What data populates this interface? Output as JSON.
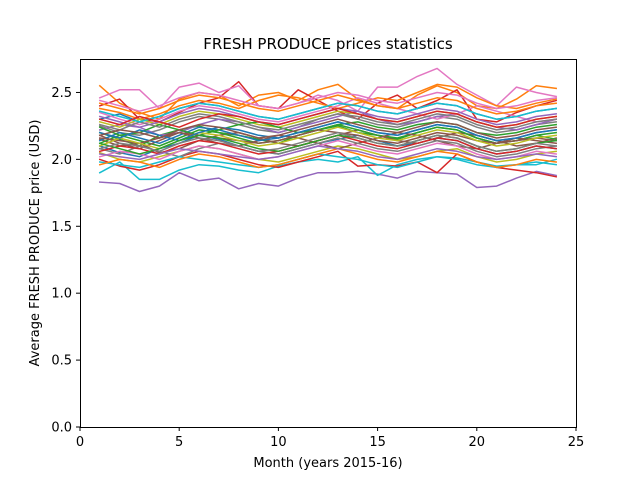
{
  "chart_data": {
    "type": "line",
    "title": "FRESH PRODUCE prices statistics",
    "xlabel": "Month (years 2015-16)",
    "ylabel": "Average FRESH PRODUCE price (USD)",
    "xlim": [
      0,
      25
    ],
    "ylim": [
      0,
      2.75
    ],
    "xticks": [
      0,
      5,
      10,
      15,
      20,
      25
    ],
    "yticks": [
      0.0,
      0.5,
      1.0,
      1.5,
      2.0,
      2.5
    ],
    "ytick_labels": [
      "0.0",
      "0.5",
      "1.0",
      "1.5",
      "2.0",
      "2.5"
    ],
    "grid": false,
    "legend": "none",
    "x": [
      1,
      2,
      3,
      4,
      5,
      6,
      7,
      8,
      9,
      10,
      11,
      12,
      13,
      14,
      15,
      16,
      17,
      18,
      19,
      20,
      21,
      22,
      23,
      24
    ],
    "palette": [
      "#1f77b4",
      "#ff7f0e",
      "#2ca02c",
      "#d62728",
      "#9467bd",
      "#8c564b",
      "#e377c2",
      "#7f7f7f",
      "#bcbd22",
      "#17becf"
    ],
    "series": [
      {
        "values": [
          2.1,
          2.05,
          2.02,
          2.08,
          2.12,
          2.18,
          2.15,
          2.1,
          2.06,
          2.04,
          2.08,
          2.12,
          2.15,
          2.18,
          2.14,
          2.1,
          2.12,
          2.16,
          2.14,
          2.08,
          2.04,
          2.06,
          2.1,
          2.08
        ]
      },
      {
        "values": [
          2.55,
          2.42,
          2.35,
          2.3,
          2.45,
          2.5,
          2.48,
          2.4,
          2.48,
          2.5,
          2.44,
          2.52,
          2.56,
          2.45,
          2.4,
          2.38,
          2.48,
          2.55,
          2.5,
          2.4,
          2.38,
          2.45,
          2.55,
          2.53
        ]
      },
      {
        "values": [
          2.2,
          2.15,
          2.1,
          2.18,
          2.22,
          2.25,
          2.2,
          2.18,
          2.15,
          2.12,
          2.18,
          2.22,
          2.25,
          2.2,
          2.18,
          2.15,
          2.2,
          2.24,
          2.22,
          2.16,
          2.12,
          2.14,
          2.18,
          2.2
        ]
      },
      {
        "values": [
          2.4,
          2.45,
          2.3,
          2.28,
          2.35,
          2.42,
          2.46,
          2.58,
          2.4,
          2.38,
          2.52,
          2.44,
          2.36,
          2.3,
          2.42,
          2.48,
          2.38,
          2.44,
          2.52,
          2.3,
          2.28,
          2.35,
          2.4,
          2.44
        ]
      },
      {
        "values": [
          1.83,
          1.82,
          1.76,
          1.8,
          1.9,
          1.84,
          1.86,
          1.78,
          1.82,
          1.8,
          1.86,
          1.9,
          1.9,
          1.91,
          1.89,
          1.86,
          1.91,
          1.9,
          1.89,
          1.79,
          1.8,
          1.86,
          1.91,
          1.88
        ]
      },
      {
        "values": [
          2.15,
          2.1,
          2.12,
          2.05,
          2.08,
          2.14,
          2.18,
          2.2,
          2.16,
          2.12,
          2.1,
          2.14,
          2.18,
          2.22,
          2.18,
          2.14,
          2.12,
          2.16,
          2.2,
          2.18,
          2.14,
          2.1,
          2.12,
          2.16
        ]
      },
      {
        "values": [
          2.46,
          2.52,
          2.52,
          2.38,
          2.54,
          2.57,
          2.5,
          2.55,
          2.4,
          2.38,
          2.42,
          2.48,
          2.44,
          2.36,
          2.54,
          2.54,
          2.62,
          2.68,
          2.56,
          2.48,
          2.4,
          2.54,
          2.5,
          2.47
        ]
      },
      {
        "values": [
          2.25,
          2.2,
          2.18,
          2.22,
          2.28,
          2.32,
          2.3,
          2.26,
          2.22,
          2.2,
          2.24,
          2.3,
          2.34,
          2.3,
          2.26,
          2.24,
          2.28,
          2.32,
          2.3,
          2.24,
          2.2,
          2.22,
          2.26,
          2.28
        ]
      },
      {
        "values": [
          2.05,
          2.0,
          1.98,
          2.02,
          2.06,
          2.1,
          2.08,
          2.04,
          2.0,
          1.98,
          2.02,
          2.06,
          2.1,
          2.08,
          2.04,
          2.0,
          2.02,
          2.06,
          2.08,
          2.02,
          1.98,
          2.0,
          2.04,
          2.06
        ]
      },
      {
        "values": [
          1.9,
          1.98,
          1.85,
          1.85,
          1.92,
          1.96,
          1.95,
          1.92,
          1.9,
          1.95,
          1.98,
          2.0,
          1.98,
          2.02,
          1.88,
          1.96,
          2.0,
          2.02,
          2.01,
          1.98,
          1.95,
          1.96,
          1.96,
          2.0
        ]
      },
      {
        "values": [
          2.3,
          2.34,
          2.28,
          2.32,
          2.38,
          2.42,
          2.4,
          2.36,
          2.32,
          2.3,
          2.34,
          2.38,
          2.42,
          2.4,
          2.36,
          2.34,
          2.38,
          2.42,
          2.4,
          2.34,
          2.3,
          2.32,
          2.36,
          2.38
        ]
      },
      {
        "values": [
          2.38,
          2.35,
          2.3,
          2.34,
          2.4,
          2.44,
          2.42,
          2.38,
          2.44,
          2.48,
          2.46,
          2.42,
          2.38,
          2.42,
          2.46,
          2.44,
          2.5,
          2.56,
          2.54,
          2.46,
          2.4,
          2.38,
          2.42,
          2.45
        ]
      },
      {
        "values": [
          2.12,
          2.18,
          2.14,
          2.1,
          2.16,
          2.22,
          2.2,
          2.16,
          2.12,
          2.14,
          2.18,
          2.22,
          2.26,
          2.22,
          2.18,
          2.16,
          2.2,
          2.24,
          2.22,
          2.16,
          2.12,
          2.14,
          2.18,
          2.15
        ]
      },
      {
        "values": [
          2.0,
          1.95,
          1.92,
          1.96,
          2.02,
          2.06,
          2.04,
          2.0,
          1.96,
          1.94,
          1.98,
          2.02,
          2.06,
          1.95,
          1.96,
          1.95,
          1.98,
          1.9,
          2.04,
          1.98,
          1.94,
          1.92,
          1.9,
          1.87
        ]
      },
      {
        "values": [
          2.22,
          2.26,
          2.24,
          2.18,
          2.2,
          2.26,
          2.3,
          2.28,
          2.24,
          2.2,
          2.24,
          2.28,
          2.32,
          2.36,
          2.3,
          2.26,
          2.28,
          2.32,
          2.34,
          2.28,
          2.24,
          2.22,
          2.26,
          2.3
        ]
      },
      {
        "values": [
          2.18,
          2.12,
          2.08,
          2.14,
          2.2,
          2.16,
          2.12,
          2.1,
          2.14,
          2.18,
          2.16,
          2.12,
          2.08,
          2.12,
          2.16,
          2.2,
          2.18,
          2.14,
          2.1,
          2.08,
          2.12,
          2.16,
          2.14,
          2.12
        ]
      },
      {
        "values": [
          2.35,
          2.3,
          2.26,
          2.3,
          2.36,
          2.4,
          2.38,
          2.34,
          2.3,
          2.28,
          2.32,
          2.36,
          2.4,
          2.46,
          2.42,
          2.38,
          2.34,
          2.3,
          2.34,
          2.4,
          2.36,
          2.32,
          2.28,
          2.3
        ]
      },
      {
        "values": [
          2.08,
          2.04,
          2.1,
          2.06,
          2.02,
          2.08,
          2.12,
          2.1,
          2.06,
          2.04,
          2.08,
          2.12,
          2.16,
          2.12,
          2.08,
          2.06,
          2.1,
          2.14,
          2.12,
          2.06,
          2.02,
          2.04,
          2.08,
          2.1
        ]
      },
      {
        "values": [
          2.28,
          2.24,
          2.3,
          2.26,
          2.32,
          2.36,
          2.34,
          2.3,
          2.26,
          2.24,
          2.28,
          2.32,
          2.36,
          2.34,
          2.3,
          2.28,
          2.32,
          2.36,
          2.34,
          2.28,
          2.24,
          2.26,
          2.3,
          2.32
        ]
      },
      {
        "values": [
          1.98,
          1.96,
          1.94,
          1.98,
          2.02,
          2.0,
          1.98,
          1.96,
          1.94,
          1.96,
          2.0,
          2.04,
          2.02,
          2.0,
          1.96,
          1.94,
          1.98,
          2.02,
          2.0,
          1.96,
          1.94,
          1.96,
          1.98,
          1.96
        ]
      },
      {
        "values": [
          2.14,
          2.2,
          2.16,
          2.12,
          2.18,
          2.24,
          2.22,
          2.18,
          2.14,
          2.16,
          2.2,
          2.24,
          2.28,
          2.24,
          2.2,
          2.18,
          2.22,
          2.26,
          2.24,
          2.18,
          2.14,
          2.16,
          2.2,
          2.22
        ]
      },
      {
        "values": [
          2.42,
          2.38,
          2.34,
          2.38,
          2.44,
          2.48,
          2.46,
          2.42,
          2.38,
          2.36,
          2.4,
          2.44,
          2.48,
          2.44,
          2.4,
          2.38,
          2.42,
          2.46,
          2.44,
          2.38,
          2.34,
          2.36,
          2.4,
          2.42
        ]
      },
      {
        "values": [
          2.24,
          2.18,
          2.2,
          2.26,
          2.22,
          2.18,
          2.22,
          2.26,
          2.28,
          2.24,
          2.2,
          2.22,
          2.26,
          2.28,
          2.24,
          2.22,
          2.26,
          2.28,
          2.26,
          2.2,
          2.18,
          2.2,
          2.24,
          2.26
        ]
      },
      {
        "values": [
          2.06,
          2.1,
          2.08,
          2.04,
          2.1,
          2.14,
          2.12,
          2.08,
          2.04,
          2.06,
          2.1,
          2.14,
          2.18,
          2.14,
          2.1,
          2.08,
          2.12,
          2.16,
          2.14,
          2.08,
          2.04,
          2.06,
          2.1,
          2.08
        ]
      },
      {
        "values": [
          2.32,
          2.28,
          2.24,
          2.28,
          2.34,
          2.38,
          2.36,
          2.32,
          2.28,
          2.26,
          2.3,
          2.34,
          2.38,
          2.36,
          2.32,
          2.3,
          2.34,
          2.38,
          2.36,
          2.3,
          2.26,
          2.28,
          2.32,
          2.34
        ]
      },
      {
        "values": [
          2.16,
          2.14,
          2.12,
          2.16,
          2.2,
          2.18,
          2.16,
          2.14,
          2.12,
          2.14,
          2.18,
          2.22,
          2.2,
          2.18,
          2.14,
          2.12,
          2.16,
          2.2,
          2.18,
          2.14,
          2.12,
          2.14,
          2.16,
          2.14
        ]
      },
      {
        "values": [
          2.02,
          2.06,
          2.04,
          2.0,
          2.06,
          2.1,
          2.08,
          2.04,
          2.0,
          2.02,
          2.06,
          2.1,
          2.14,
          2.1,
          2.06,
          2.04,
          2.08,
          2.12,
          2.1,
          2.04,
          2.0,
          2.02,
          2.06,
          2.04
        ]
      },
      {
        "values": [
          2.26,
          2.22,
          2.28,
          2.24,
          2.3,
          2.34,
          2.32,
          2.28,
          2.24,
          2.22,
          2.26,
          2.3,
          2.34,
          2.32,
          2.28,
          2.26,
          2.3,
          2.34,
          2.32,
          2.26,
          2.22,
          2.24,
          2.28,
          2.3
        ]
      },
      {
        "values": [
          2.1,
          2.16,
          2.12,
          2.08,
          2.14,
          2.2,
          2.18,
          2.14,
          2.1,
          2.12,
          2.16,
          2.2,
          2.24,
          2.2,
          2.16,
          2.14,
          2.18,
          2.22,
          2.2,
          2.14,
          2.1,
          2.12,
          2.16,
          2.18
        ]
      },
      {
        "values": [
          2.36,
          2.32,
          2.28,
          2.32,
          2.38,
          2.42,
          2.4,
          2.36,
          2.32,
          2.3,
          2.34,
          2.38,
          2.42,
          2.4,
          2.36,
          2.34,
          2.38,
          2.42,
          2.4,
          2.34,
          2.3,
          2.32,
          2.36,
          2.38
        ]
      },
      {
        "values": [
          2.2,
          2.16,
          2.22,
          2.18,
          2.14,
          2.2,
          2.24,
          2.22,
          2.18,
          2.16,
          2.2,
          2.24,
          2.28,
          2.24,
          2.2,
          2.18,
          2.22,
          2.26,
          2.24,
          2.18,
          2.14,
          2.16,
          2.2,
          2.22
        ]
      },
      {
        "values": [
          1.96,
          2.0,
          1.98,
          1.94,
          2.0,
          2.04,
          2.02,
          1.98,
          1.94,
          1.96,
          2.0,
          2.04,
          2.08,
          2.04,
          2.0,
          1.98,
          2.02,
          2.06,
          2.04,
          1.98,
          1.94,
          1.96,
          2.0,
          1.98
        ]
      },
      {
        "values": [
          2.12,
          2.08,
          2.04,
          2.08,
          2.14,
          2.18,
          2.16,
          2.12,
          2.08,
          2.06,
          2.1,
          2.14,
          2.18,
          2.16,
          2.12,
          2.1,
          2.14,
          2.18,
          2.16,
          2.1,
          2.06,
          2.08,
          2.12,
          2.14
        ]
      },
      {
        "values": [
          2.3,
          2.26,
          2.32,
          2.28,
          2.24,
          2.3,
          2.34,
          2.32,
          2.28,
          2.26,
          2.3,
          2.34,
          2.38,
          2.34,
          2.3,
          2.28,
          2.32,
          2.36,
          2.34,
          2.28,
          2.24,
          2.26,
          2.3,
          2.32
        ]
      },
      {
        "values": [
          2.04,
          2.02,
          2.0,
          2.04,
          2.08,
          2.06,
          2.04,
          2.02,
          2.0,
          2.02,
          2.06,
          2.1,
          2.08,
          2.06,
          2.02,
          2.0,
          2.04,
          2.08,
          2.06,
          2.02,
          2.0,
          2.02,
          2.04,
          2.02
        ]
      },
      {
        "values": [
          2.18,
          2.22,
          2.2,
          2.16,
          2.22,
          2.26,
          2.24,
          2.2,
          2.16,
          2.18,
          2.22,
          2.26,
          2.3,
          2.26,
          2.22,
          2.2,
          2.24,
          2.28,
          2.26,
          2.2,
          2.16,
          2.18,
          2.22,
          2.24
        ]
      },
      {
        "values": [
          2.44,
          2.4,
          2.36,
          2.4,
          2.46,
          2.5,
          2.48,
          2.44,
          2.4,
          2.38,
          2.42,
          2.46,
          2.5,
          2.48,
          2.44,
          2.42,
          2.46,
          2.5,
          2.48,
          2.42,
          2.38,
          2.4,
          2.44,
          2.46
        ]
      },
      {
        "values": [
          2.08,
          2.12,
          2.1,
          2.06,
          2.12,
          2.16,
          2.14,
          2.1,
          2.06,
          2.08,
          2.12,
          2.16,
          2.2,
          2.16,
          2.12,
          2.1,
          2.14,
          2.18,
          2.16,
          2.1,
          2.06,
          2.08,
          2.12,
          2.1
        ]
      }
    ]
  }
}
